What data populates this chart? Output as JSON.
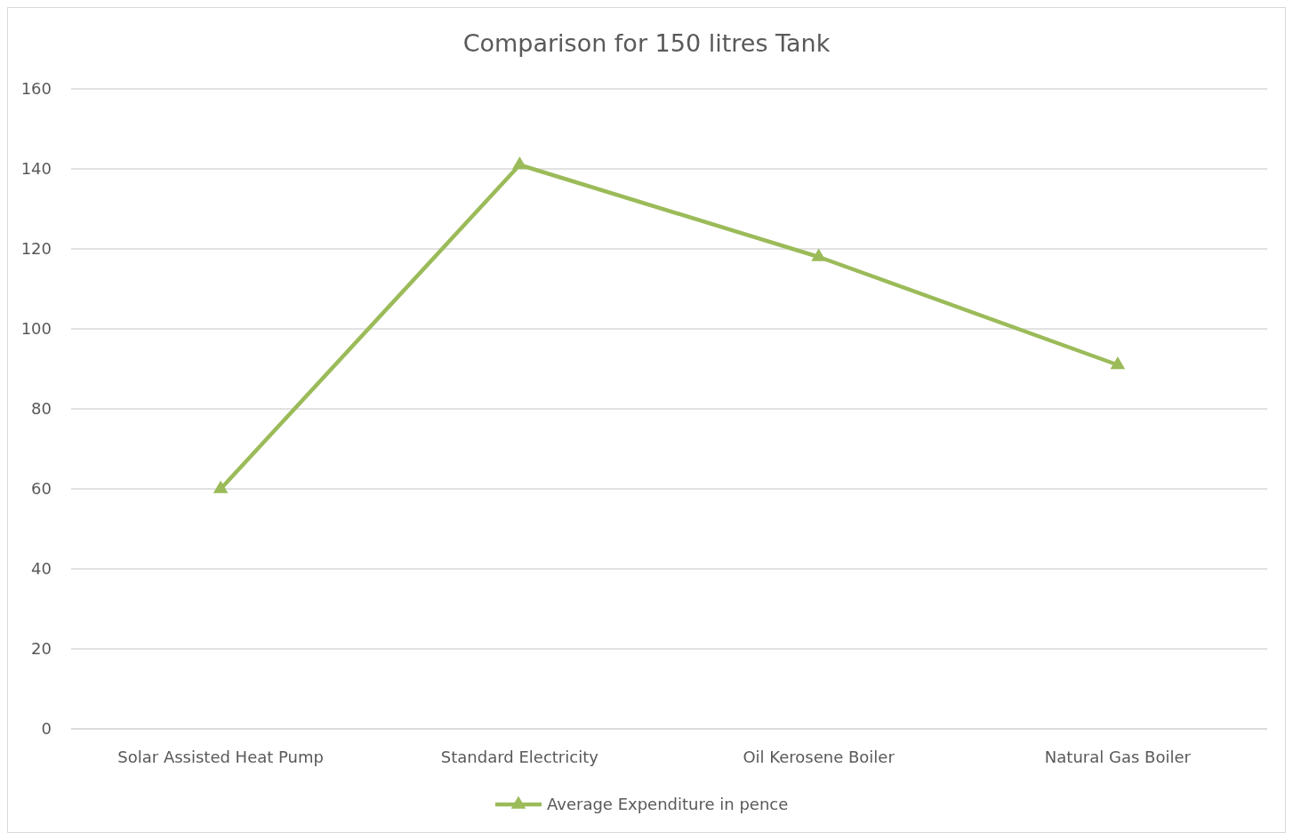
{
  "chart_data": {
    "type": "line",
    "title": "Comparison for 150 litres Tank",
    "categories": [
      "Solar Assisted Heat Pump",
      "Standard Electricity",
      "Oil Kerosene Boiler",
      "Natural Gas Boiler"
    ],
    "series": [
      {
        "name": "Average Expenditure in pence",
        "color": "#9bbb59",
        "values": [
          60,
          141,
          118,
          91
        ]
      }
    ],
    "ylim": [
      0,
      160
    ],
    "yticks": [
      0,
      20,
      40,
      60,
      80,
      100,
      120,
      140,
      160
    ],
    "grid": "y",
    "legend": "bottom",
    "marker": "triangle",
    "line_style": "solid"
  }
}
